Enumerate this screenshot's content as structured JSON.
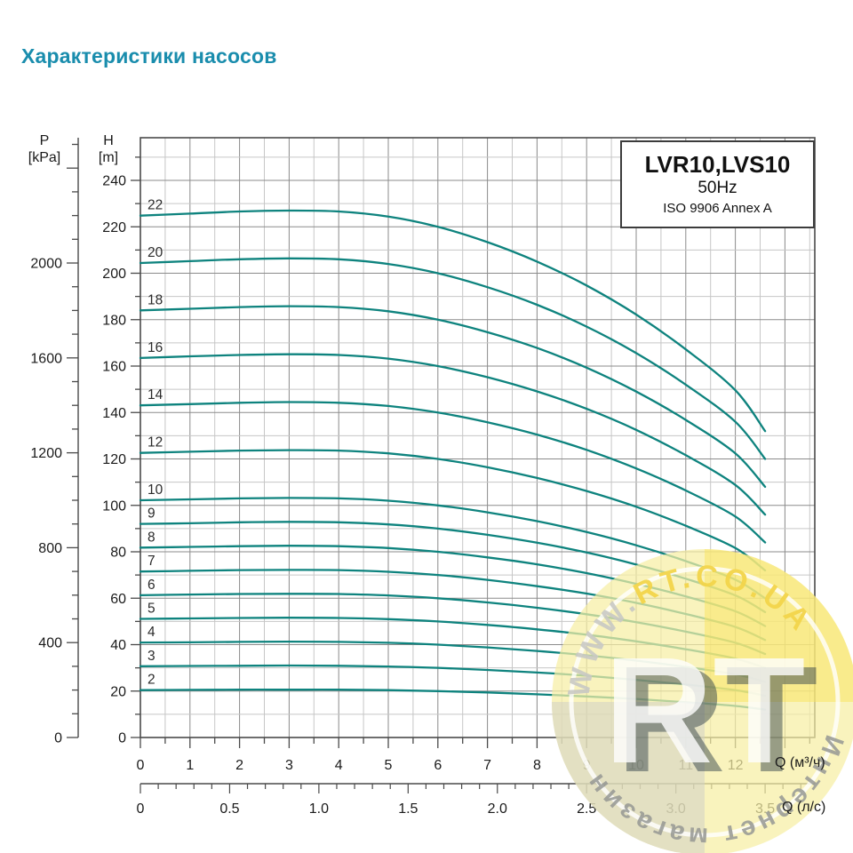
{
  "page": {
    "title": "Характеристики насосов",
    "title_color": "#1a8dad",
    "background": "#ffffff"
  },
  "info_box": {
    "model": "LVR10,LVS10",
    "frequency": "50Hz",
    "standard": "ISO 9906 Annex A"
  },
  "axes": {
    "pressure": {
      "header_line1": "P",
      "header_line2": "[kPa]",
      "tick_labels": [
        0,
        400,
        800,
        1200,
        1600,
        2000
      ],
      "minor_step_kpa": 100,
      "max_kpa": 2500
    },
    "head": {
      "header_line1": "H",
      "header_line2": "[m]",
      "tick_labels": [
        0,
        20,
        40,
        60,
        80,
        100,
        120,
        140,
        160,
        180,
        200,
        220,
        240
      ],
      "minor_step_m": 10,
      "max_m": 250
    },
    "flow_m3h": {
      "unit_label": "Q (м³/ч)",
      "tick_labels": [
        "0",
        "1",
        "2",
        "3",
        "4",
        "5",
        "6",
        "7",
        "8",
        "9",
        "10",
        "11",
        "12"
      ],
      "minor_step": 0.5,
      "max": 13.5
    },
    "flow_ls": {
      "unit_label": "Q (л/с)",
      "tick_labels": [
        "0",
        "0.5",
        "1.0",
        "1.5",
        "2.0",
        "2.5",
        "3.0",
        "3.5"
      ],
      "minor_step": 0.1,
      "max": 3.7,
      "m3h_per_ls": 3.6
    }
  },
  "chart_data": {
    "type": "line",
    "title": "LVR10,LVS10 50Hz ISO 9906 Annex A",
    "xlabel": "Q (м³/ч)",
    "ylabel": "H [m]",
    "xlim": [
      0,
      13.6
    ],
    "ylim": [
      0,
      258
    ],
    "grid": "on",
    "curve_color": "#0e837e",
    "x": [
      0,
      1,
      2,
      3,
      4,
      5,
      6,
      7,
      8,
      9,
      10,
      11,
      12,
      12.6
    ],
    "series": [
      {
        "name": "22",
        "values": [
          224.8,
          225.7,
          226.6,
          227.0,
          226.6,
          224.4,
          220.0,
          213.4,
          205.0,
          194.7,
          182.2,
          167.2,
          149.6,
          132.0
        ]
      },
      {
        "name": "20",
        "values": [
          204.4,
          205.2,
          206.0,
          206.4,
          206.0,
          204.0,
          200.0,
          194.0,
          186.4,
          177.0,
          165.6,
          152.0,
          136.0,
          120.0
        ]
      },
      {
        "name": "18",
        "values": [
          184.0,
          184.7,
          185.4,
          185.8,
          185.4,
          183.6,
          180.0,
          174.6,
          167.8,
          159.3,
          149.0,
          136.8,
          122.4,
          108.0
        ]
      },
      {
        "name": "16",
        "values": [
          163.5,
          164.2,
          164.8,
          165.1,
          164.8,
          163.2,
          160.0,
          155.2,
          149.1,
          141.6,
          132.5,
          121.6,
          108.8,
          96.0
        ]
      },
      {
        "name": "14",
        "values": [
          143.1,
          143.6,
          144.2,
          144.5,
          144.2,
          142.8,
          140.0,
          135.8,
          130.5,
          123.9,
          115.9,
          106.4,
          95.2,
          84.0
        ]
      },
      {
        "name": "12",
        "values": [
          122.6,
          123.1,
          123.6,
          123.8,
          123.6,
          122.4,
          120.0,
          116.4,
          111.8,
          106.2,
          99.4,
          91.2,
          81.6,
          72.0
        ]
      },
      {
        "name": "10",
        "values": [
          102.2,
          102.6,
          103.0,
          103.2,
          103.0,
          102.0,
          100.0,
          97.0,
          93.2,
          88.5,
          82.8,
          76.0,
          68.0,
          60.0
        ]
      },
      {
        "name": "9",
        "values": [
          92.0,
          92.3,
          92.7,
          92.9,
          92.7,
          91.8,
          90.0,
          87.3,
          83.9,
          79.7,
          74.5,
          68.4,
          61.2,
          54.0
        ]
      },
      {
        "name": "8",
        "values": [
          81.8,
          82.1,
          82.4,
          82.6,
          82.4,
          81.6,
          80.0,
          77.6,
          74.6,
          70.8,
          66.2,
          60.8,
          54.4,
          48.0
        ]
      },
      {
        "name": "7",
        "values": [
          71.5,
          71.8,
          72.1,
          72.2,
          72.1,
          71.4,
          70.0,
          67.9,
          65.2,
          62.0,
          58.0,
          53.2,
          47.6,
          42.0
        ]
      },
      {
        "name": "6",
        "values": [
          61.3,
          61.6,
          61.8,
          61.9,
          61.8,
          61.2,
          60.0,
          58.2,
          55.9,
          53.1,
          49.7,
          45.6,
          40.8,
          36.0
        ]
      },
      {
        "name": "5",
        "values": [
          51.1,
          51.3,
          51.5,
          51.6,
          51.5,
          51.0,
          50.0,
          48.5,
          46.6,
          44.3,
          41.4,
          38.0,
          34.0,
          30.0
        ]
      },
      {
        "name": "4",
        "values": [
          40.9,
          41.0,
          41.2,
          41.3,
          41.2,
          40.8,
          40.0,
          38.8,
          37.3,
          35.4,
          33.1,
          30.4,
          27.2,
          24.0
        ]
      },
      {
        "name": "3",
        "values": [
          30.7,
          30.8,
          30.9,
          31.0,
          30.9,
          30.6,
          30.0,
          29.1,
          28.0,
          26.6,
          24.8,
          22.8,
          20.4,
          18.0
        ]
      },
      {
        "name": "2",
        "values": [
          20.4,
          20.5,
          20.6,
          20.6,
          20.6,
          20.4,
          20.0,
          19.4,
          18.6,
          17.7,
          16.6,
          15.2,
          13.6,
          12.0
        ]
      }
    ]
  },
  "watermark": {
    "site_prefix": "WWW.",
    "site_rest": "RT.CO.UA",
    "logo_letters": "RT",
    "caption": "Интернет магазин",
    "circle_color": "#f6eea3",
    "accent_yellow": "#f9e35c",
    "caption_color": "#969894"
  }
}
